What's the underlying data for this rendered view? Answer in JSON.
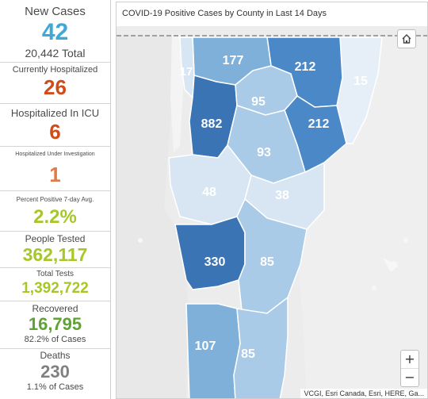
{
  "colors": {
    "teal": "#3fa8d6",
    "orange": "#d04c18",
    "lime": "#a7c728",
    "green": "#5fa235",
    "gray": "#808080",
    "county_darkest": "#3b74b5",
    "county_dark": "#4a88c7",
    "county_mid": "#7fb0da",
    "county_light": "#a9cbe8",
    "county_lightest": "#d8e6f3",
    "county_pale": "#e6eff8"
  },
  "sidebar": {
    "new_cases": {
      "label": "New Cases",
      "value": "42",
      "sub": "20,442 Total"
    },
    "hospitalized": {
      "label": "Currently Hospitalized",
      "value": "26"
    },
    "icu": {
      "label": "Hospitalized In ICU",
      "value": "6"
    },
    "investigation": {
      "label": "Hospitalized Under Investigation",
      "value": "1"
    },
    "percent_positive": {
      "label": "Percent Positive 7-day Avg.",
      "value": "2.2%"
    },
    "people_tested": {
      "label": "People Tested",
      "value": "362,117"
    },
    "total_tests": {
      "label": "Total Tests",
      "value": "1,392,722"
    },
    "recovered": {
      "label": "Recovered",
      "value": "16,795",
      "sub": "82.2% of Cases"
    },
    "deaths": {
      "label": "Deaths",
      "value": "230",
      "sub": "1.1% of Cases"
    }
  },
  "map": {
    "title": "COVID-19 Positive Cases by County in Last 14 Days",
    "home_icon": "home-icon",
    "zoom_in": "+",
    "zoom_out": "−",
    "attribution": "VCGI, Esri Canada, Esri, HERE, Ga...",
    "counties": {
      "grand_isle": "17",
      "franklin": "177",
      "orleans": "212",
      "essex": "15",
      "chittenden": "882",
      "lamoille": "95",
      "caledonia": "212",
      "washington": "93",
      "addison": "48",
      "orange": "38",
      "rutland": "330",
      "windsor": "85",
      "bennington": "107",
      "windham": "85"
    }
  }
}
